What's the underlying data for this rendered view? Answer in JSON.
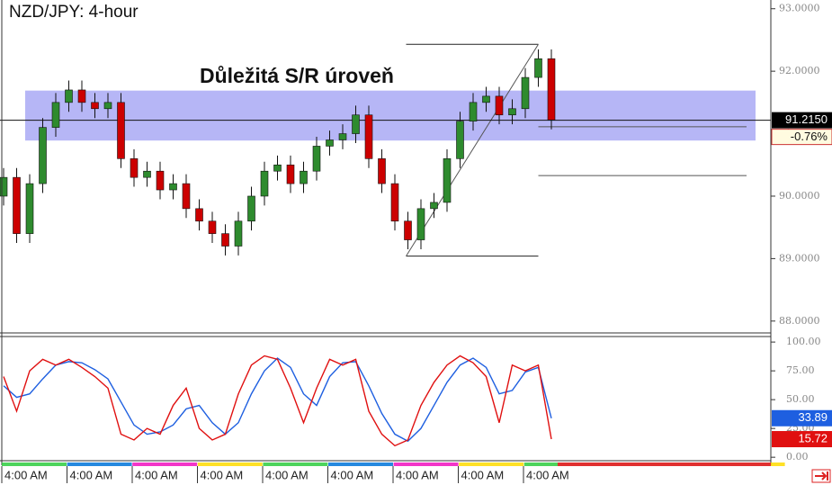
{
  "chart_data": {
    "type": "candlestick",
    "title": "NZD/JPY: 4-hour",
    "annotation": "Důležitá S/R úroveň",
    "categories": [
      "4:00 AM",
      null,
      null,
      null,
      null,
      "4:00 AM",
      null,
      null,
      null,
      null,
      "4:00 AM",
      null,
      null,
      null,
      null,
      "4:00 AM",
      null,
      null,
      null,
      null,
      "4:00 AM",
      null,
      null,
      null,
      null,
      "4:00 AM",
      null,
      null,
      null,
      null,
      "4:00 AM",
      null,
      null,
      null,
      null,
      "4:00 AM",
      null,
      null,
      null,
      null,
      "4:00 AM",
      null,
      null
    ],
    "open": [
      90.0,
      90.3,
      89.4,
      90.2,
      91.1,
      91.5,
      91.7,
      91.5,
      91.4,
      91.5,
      90.6,
      90.3,
      90.4,
      90.1,
      90.2,
      89.8,
      89.6,
      89.4,
      89.2,
      89.6,
      90.0,
      90.4,
      90.5,
      90.2,
      90.4,
      90.8,
      90.9,
      91.0,
      91.3,
      90.6,
      90.2,
      89.6,
      89.3,
      89.8,
      89.9,
      90.6,
      91.2,
      91.5,
      91.6,
      91.3,
      91.4,
      91.9,
      92.2
    ],
    "high": [
      90.45,
      90.45,
      90.35,
      91.25,
      91.65,
      91.85,
      91.85,
      91.65,
      91.65,
      91.65,
      90.75,
      90.55,
      90.55,
      90.35,
      90.35,
      89.95,
      89.75,
      89.55,
      89.75,
      90.15,
      90.55,
      90.65,
      90.65,
      90.55,
      90.95,
      91.05,
      91.15,
      91.45,
      91.45,
      90.75,
      90.35,
      89.75,
      89.95,
      90.05,
      90.75,
      91.35,
      91.65,
      91.75,
      91.75,
      91.55,
      92.05,
      92.35,
      92.35
    ],
    "low": [
      89.85,
      89.25,
      89.25,
      90.05,
      90.95,
      91.35,
      91.35,
      91.25,
      91.25,
      90.45,
      90.15,
      90.15,
      89.95,
      89.95,
      89.65,
      89.45,
      89.25,
      89.05,
      89.05,
      89.45,
      89.85,
      90.25,
      90.05,
      90.05,
      90.25,
      90.65,
      90.75,
      90.85,
      90.45,
      90.05,
      89.45,
      89.15,
      89.15,
      89.65,
      89.75,
      90.45,
      91.05,
      91.35,
      91.15,
      91.15,
      91.25,
      91.75,
      91.07
    ],
    "close": [
      90.3,
      89.4,
      90.2,
      91.1,
      91.5,
      91.7,
      91.5,
      91.4,
      91.5,
      90.6,
      90.3,
      90.4,
      90.1,
      90.2,
      89.8,
      89.6,
      89.4,
      89.2,
      89.6,
      90.0,
      90.4,
      90.5,
      90.2,
      90.4,
      90.8,
      90.9,
      91.0,
      91.3,
      90.6,
      90.2,
      89.6,
      89.3,
      89.8,
      89.9,
      90.6,
      91.2,
      91.5,
      91.6,
      91.3,
      91.4,
      91.9,
      92.2,
      91.22
    ],
    "up_color": "#2e8b2e",
    "down_color": "#cc0000",
    "ylim": [
      87.81,
      93.14
    ],
    "yticks": [
      {
        "value": 93,
        "label": "93.0000"
      },
      {
        "value": 92,
        "label": "92.0000"
      },
      {
        "value": 91,
        "label": "91.0000"
      },
      {
        "value": 90,
        "label": "90.0000"
      },
      {
        "value": 89,
        "label": "89.0000"
      },
      {
        "value": 88,
        "label": "88.0000"
      }
    ],
    "zone": [
      90.89,
      91.69
    ],
    "zone_color": "#a9a9f5",
    "fib_high": 92.43,
    "fib_low": 89.04,
    "fib_levels": [
      91.11,
      90.33
    ],
    "last_price": {
      "value": 91.215,
      "label": "91.2150"
    },
    "change": {
      "value": -0.76,
      "label": "-0.76%"
    },
    "stochastic": {
      "ylim": [
        -3,
        104
      ],
      "yticks": [
        {
          "value": 100,
          "label": "100.00"
        },
        {
          "value": 75,
          "label": "75.00"
        },
        {
          "value": 50,
          "label": "50.00"
        },
        {
          "value": 25,
          "label": "25.00"
        },
        {
          "value": 0,
          "label": "0.00"
        }
      ],
      "series": [
        {
          "color": "#1e5fe0",
          "values": [
            62,
            52,
            55,
            68,
            80,
            83,
            82,
            76,
            68,
            48,
            28,
            20,
            22,
            28,
            42,
            45,
            30,
            20,
            30,
            55,
            75,
            86,
            78,
            55,
            45,
            70,
            82,
            83,
            62,
            38,
            20,
            14,
            25,
            45,
            65,
            80,
            86,
            78,
            55,
            58,
            74,
            78,
            33.89
          ],
          "label": "33.89"
        },
        {
          "color": "#e01010",
          "values": [
            70,
            40,
            75,
            85,
            80,
            85,
            78,
            70,
            60,
            20,
            15,
            25,
            20,
            45,
            60,
            25,
            15,
            20,
            55,
            80,
            88,
            85,
            60,
            30,
            60,
            85,
            80,
            85,
            40,
            20,
            10,
            15,
            45,
            65,
            80,
            88,
            82,
            70,
            30,
            80,
            75,
            80,
            15.72
          ],
          "label": "15.72"
        }
      ]
    }
  }
}
